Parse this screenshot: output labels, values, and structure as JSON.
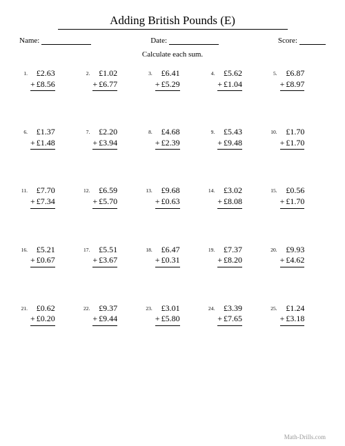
{
  "title": "Adding British Pounds (E)",
  "labels": {
    "name": "Name:",
    "date": "Date:",
    "score": "Score:"
  },
  "instruction": "Calculate each sum.",
  "currency": "£",
  "operator": "+",
  "footer": "Math-Drills.com",
  "colors": {
    "background": "#ffffff",
    "text": "#000000",
    "footer": "#999999",
    "line": "#000000"
  },
  "typography": {
    "title_fontsize": 17,
    "body_fontsize": 12,
    "label_fontsize": 11,
    "numlabel_fontsize": 7.5,
    "footer_fontsize": 9,
    "font_family": "Times New Roman"
  },
  "layout": {
    "columns": 5,
    "rows": 5,
    "row_gap": 52,
    "col_gap": 8,
    "underline_widths": {
      "name": 72,
      "date": 72,
      "score": 38
    }
  },
  "problems": [
    {
      "n": "1.",
      "a": "2.63",
      "b": "8.56"
    },
    {
      "n": "2.",
      "a": "1.02",
      "b": "6.77"
    },
    {
      "n": "3.",
      "a": "6.41",
      "b": "5.29"
    },
    {
      "n": "4.",
      "a": "5.62",
      "b": "1.04"
    },
    {
      "n": "5.",
      "a": "6.87",
      "b": "8.97"
    },
    {
      "n": "6.",
      "a": "1.37",
      "b": "1.48"
    },
    {
      "n": "7.",
      "a": "2.20",
      "b": "3.94"
    },
    {
      "n": "8.",
      "a": "4.68",
      "b": "2.39"
    },
    {
      "n": "9.",
      "a": "5.43",
      "b": "9.48"
    },
    {
      "n": "10.",
      "a": "1.70",
      "b": "1.70"
    },
    {
      "n": "11.",
      "a": "7.70",
      "b": "7.34"
    },
    {
      "n": "12.",
      "a": "6.59",
      "b": "5.70"
    },
    {
      "n": "13.",
      "a": "9.68",
      "b": "0.63"
    },
    {
      "n": "14.",
      "a": "3.02",
      "b": "8.08"
    },
    {
      "n": "15.",
      "a": "0.56",
      "b": "1.70"
    },
    {
      "n": "16.",
      "a": "5.21",
      "b": "0.67"
    },
    {
      "n": "17.",
      "a": "5.51",
      "b": "3.67"
    },
    {
      "n": "18.",
      "a": "6.47",
      "b": "0.31"
    },
    {
      "n": "19.",
      "a": "7.37",
      "b": "8.20"
    },
    {
      "n": "20.",
      "a": "9.93",
      "b": "4.62"
    },
    {
      "n": "21.",
      "a": "0.62",
      "b": "0.20"
    },
    {
      "n": "22.",
      "a": "9.37",
      "b": "9.44"
    },
    {
      "n": "23.",
      "a": "3.01",
      "b": "5.80"
    },
    {
      "n": "24.",
      "a": "3.39",
      "b": "7.65"
    },
    {
      "n": "25.",
      "a": "1.24",
      "b": "3.18"
    }
  ]
}
